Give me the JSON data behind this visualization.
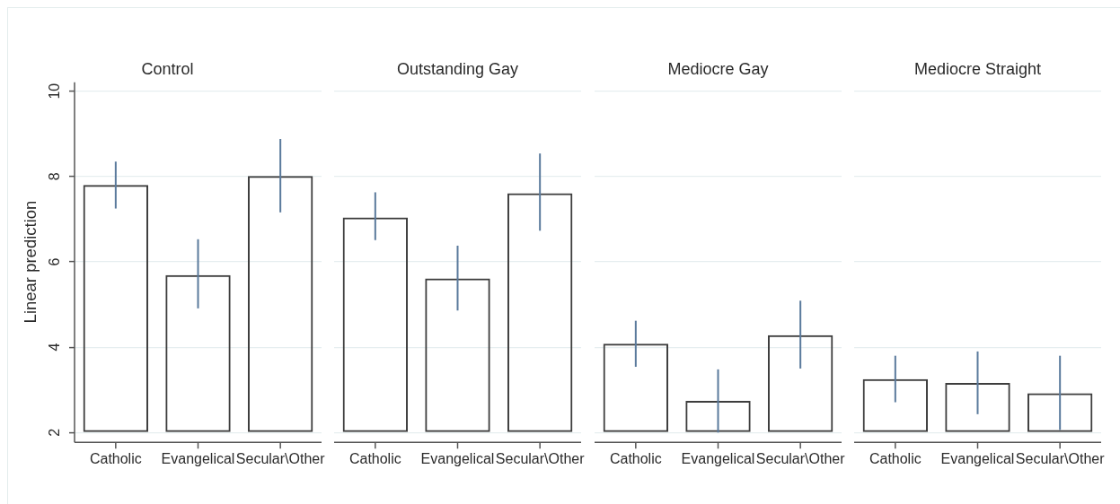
{
  "chart_data": [
    {
      "type": "bar",
      "title": "Control",
      "ylabel": "Linear prediction",
      "categories": [
        "Catholic",
        "Evangelical",
        "Secular\\Other"
      ],
      "values": [
        7.8,
        5.69,
        8.01
      ],
      "errors": [
        [
          7.25,
          8.35
        ],
        [
          4.91,
          6.53
        ],
        [
          7.16,
          8.88
        ]
      ],
      "color": "#3d3d3d",
      "ylim": [
        2,
        10
      ],
      "yticks": [
        2,
        4,
        6,
        8,
        10
      ],
      "grid": "y"
    },
    {
      "type": "bar",
      "title": "Outstanding Gay",
      "categories": [
        "Catholic",
        "Evangelical",
        "Secular\\Other"
      ],
      "values": [
        7.04,
        5.61,
        7.61
      ],
      "errors": [
        [
          6.51,
          7.63
        ],
        [
          4.86,
          6.38
        ],
        [
          6.73,
          8.54
        ]
      ],
      "color": "#3d3d3d",
      "ylim": [
        2,
        10
      ],
      "yticks": [
        2,
        4,
        6,
        8,
        10
      ],
      "grid": "y",
      "tick_labels": "x"
    },
    {
      "type": "bar",
      "title": "Mediocre Gay",
      "categories": [
        "Catholic",
        "Evangelical",
        "Secular\\Other"
      ],
      "values": [
        4.08,
        2.74,
        4.28
      ],
      "errors": [
        [
          3.54,
          4.62
        ],
        [
          2.0,
          3.48
        ],
        [
          3.5,
          5.09
        ]
      ],
      "color": "#3d3d3d",
      "ylim": [
        2,
        10
      ],
      "yticks": [
        2,
        4,
        6,
        8,
        10
      ],
      "grid": "y",
      "tick_labels": "x"
    },
    {
      "type": "bar",
      "title": "Mediocre Straight",
      "categories": [
        "Catholic",
        "Evangelical",
        "Secular\\Other"
      ],
      "values": [
        3.25,
        3.16,
        2.92
      ],
      "errors": [
        [
          2.71,
          3.8
        ],
        [
          2.43,
          3.9
        ],
        [
          2.06,
          3.8
        ]
      ],
      "color": "#3d3d3d",
      "ylim": [
        2,
        10
      ],
      "yticks": [
        2,
        4,
        6,
        8,
        10
      ],
      "grid": "y",
      "tick_labels": "x"
    }
  ]
}
